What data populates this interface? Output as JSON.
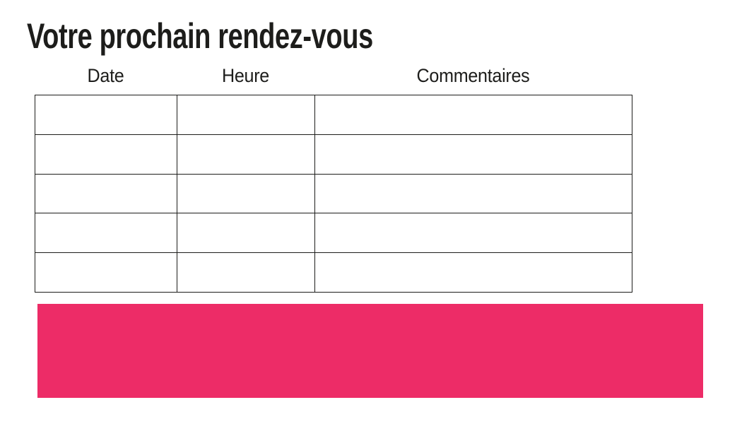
{
  "page": {
    "title": "Votre prochain rendez-vous"
  },
  "appointments_table": {
    "headers": [
      "Date",
      "Heure",
      "Commentaires"
    ],
    "rows": [
      [
        "",
        "",
        ""
      ],
      [
        "",
        "",
        ""
      ],
      [
        "",
        "",
        ""
      ],
      [
        "",
        "",
        ""
      ],
      [
        "",
        "",
        ""
      ]
    ]
  },
  "banner": {
    "text": ""
  },
  "colors": {
    "accent_pink": "#ED2C67",
    "ink": "#1d1d1b",
    "background": "#ffffff"
  }
}
